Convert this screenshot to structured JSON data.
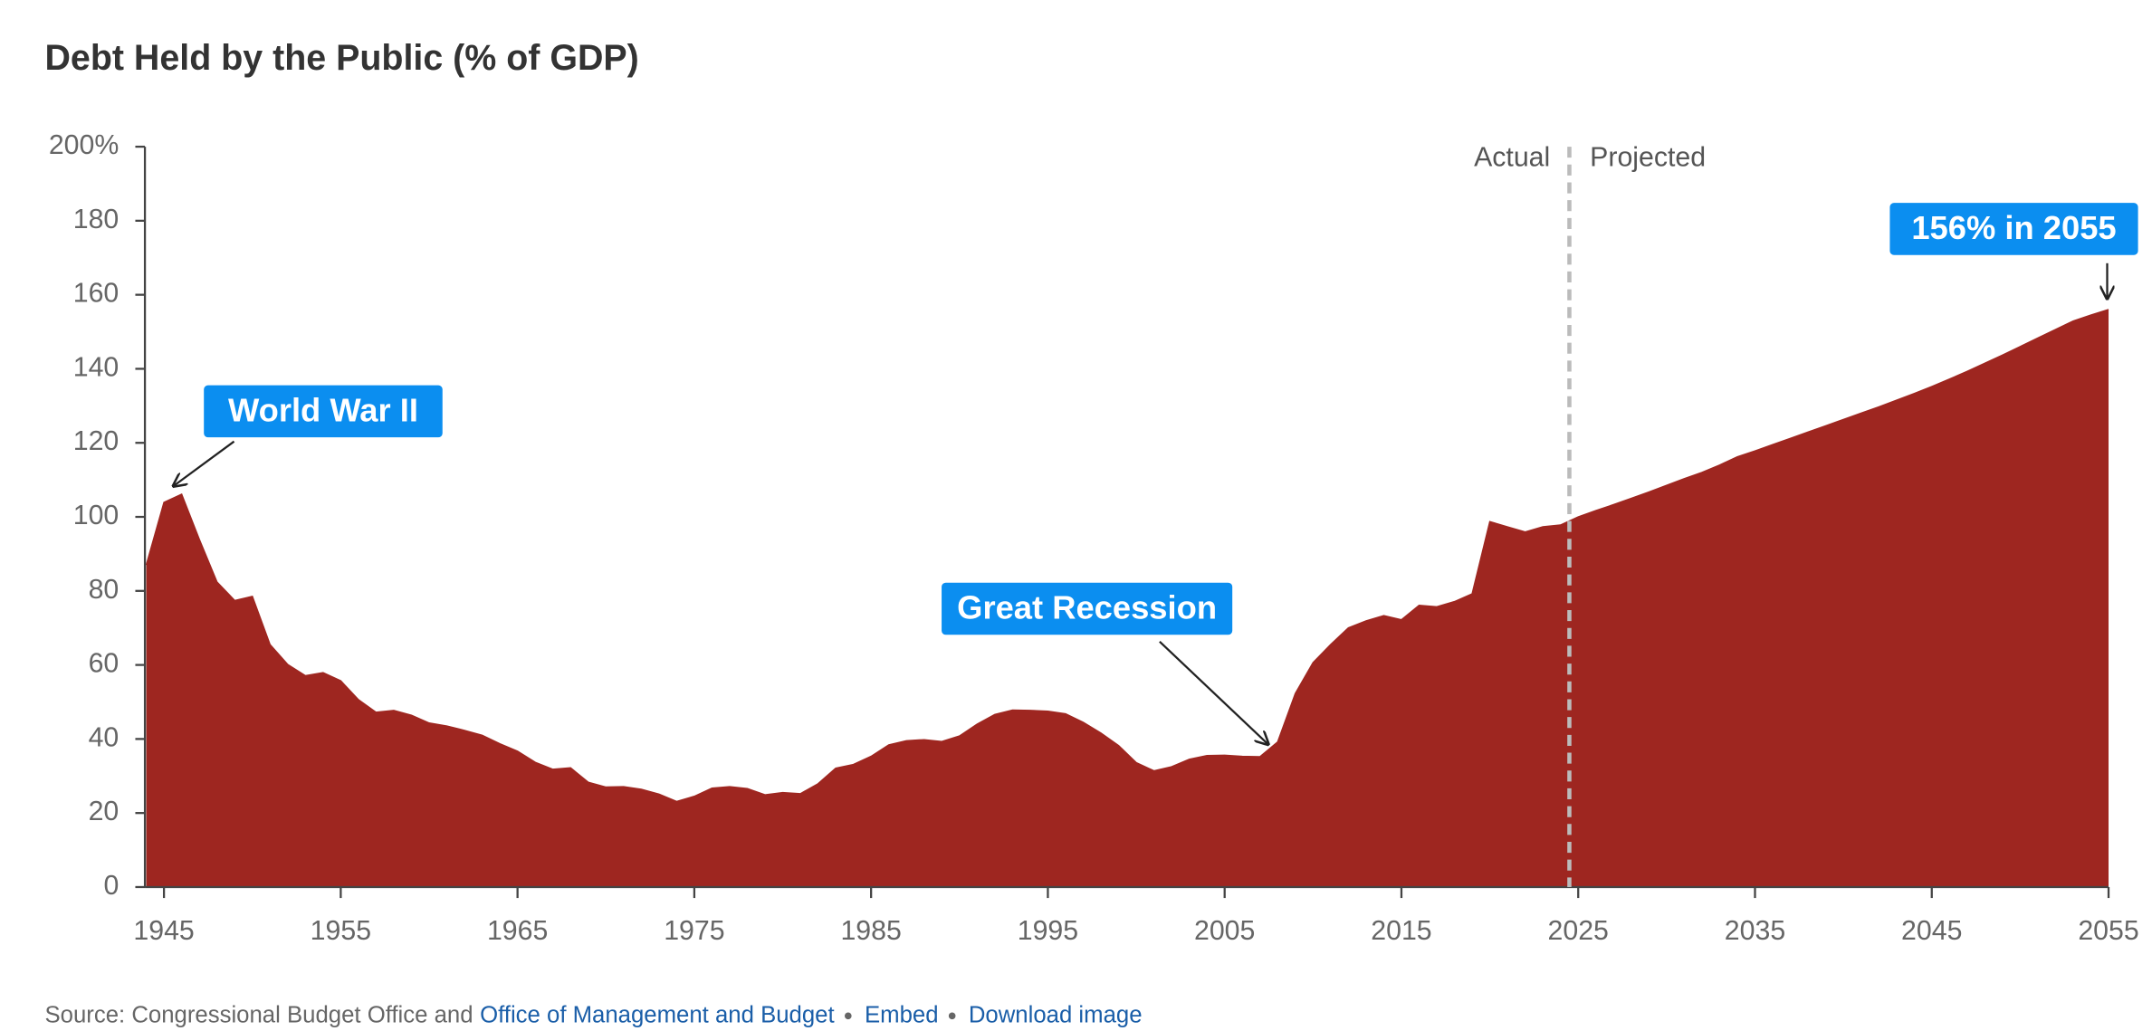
{
  "chart_data": {
    "type": "area",
    "title": "Debt Held by the Public (% of GDP)",
    "x": [
      1944,
      1945,
      1946,
      1947,
      1948,
      1949,
      1950,
      1951,
      1952,
      1953,
      1954,
      1955,
      1956,
      1957,
      1958,
      1959,
      1960,
      1961,
      1962,
      1963,
      1964,
      1965,
      1966,
      1967,
      1968,
      1969,
      1970,
      1971,
      1972,
      1973,
      1974,
      1975,
      1976,
      1977,
      1978,
      1979,
      1980,
      1981,
      1982,
      1983,
      1984,
      1985,
      1986,
      1987,
      1988,
      1989,
      1990,
      1991,
      1992,
      1993,
      1994,
      1995,
      1996,
      1997,
      1998,
      1999,
      2000,
      2001,
      2002,
      2003,
      2004,
      2005,
      2006,
      2007,
      2008,
      2009,
      2010,
      2011,
      2012,
      2013,
      2014,
      2015,
      2016,
      2017,
      2018,
      2019,
      2020,
      2021,
      2022,
      2023,
      2024,
      2025,
      2026,
      2027,
      2028,
      2029,
      2030,
      2031,
      2032,
      2033,
      2034,
      2035,
      2036,
      2037,
      2038,
      2039,
      2040,
      2041,
      2042,
      2043,
      2044,
      2045,
      2046,
      2047,
      2048,
      2049,
      2050,
      2051,
      2052,
      2053,
      2054,
      2055
    ],
    "values": [
      87,
      103.9,
      106.1,
      93.9,
      82.4,
      77.4,
      78.5,
      65.5,
      60.1,
      57.1,
      57.9,
      55.7,
      50.6,
      47.2,
      47.7,
      46.4,
      44.3,
      43.5,
      42.3,
      41.0,
      38.7,
      36.7,
      33.7,
      31.8,
      32.2,
      28.3,
      27.0,
      27.1,
      26.4,
      25.1,
      23.1,
      24.5,
      26.7,
      27.1,
      26.6,
      24.9,
      25.5,
      25.2,
      27.9,
      32.1,
      33.1,
      35.3,
      38.4,
      39.5,
      39.8,
      39.3,
      40.8,
      44.0,
      46.6,
      47.8,
      47.7,
      47.5,
      46.8,
      44.5,
      41.6,
      38.2,
      33.6,
      31.4,
      32.5,
      34.5,
      35.5,
      35.6,
      35.3,
      35.2,
      39.2,
      52.3,
      60.6,
      65.5,
      70.0,
      71.9,
      73.3,
      72.2,
      76.1,
      75.7,
      77.1,
      79.2,
      98.7,
      97.3,
      95.9,
      97.3,
      97.8,
      100,
      101.7,
      103.3,
      105,
      106.7,
      108.5,
      110.3,
      112,
      114,
      116.2,
      117.8,
      119.5,
      121.2,
      122.9,
      124.6,
      126.3,
      128,
      129.7,
      131.5,
      133.3,
      135.2,
      137.2,
      139.3,
      141.5,
      143.7,
      146,
      148.3,
      150.6,
      152.9,
      154.5,
      156
    ],
    "color": "#9e2620",
    "xlim": [
      1944,
      2055
    ],
    "xticks": [
      1945,
      1955,
      1965,
      1975,
      1985,
      1995,
      2005,
      2015,
      2025,
      2035,
      2045,
      2055
    ],
    "ylim": [
      0,
      200
    ],
    "yticks": [
      0,
      20,
      40,
      60,
      80,
      100,
      120,
      140,
      160,
      180,
      {
        "value": 200,
        "label": "200%"
      }
    ],
    "divider": {
      "x": 2024.5,
      "left_label": "Actual",
      "right_label": "Projected"
    },
    "annotations": [
      {
        "text": "World War II",
        "x": 1946,
        "y": 106.1
      },
      {
        "text": "Great Recession",
        "x": 2007,
        "y": 35.2
      },
      {
        "text": "156% in 2055",
        "x": 2055,
        "y": 156
      }
    ],
    "annotation_color": "#0b8ef0",
    "source": {
      "prefix": "Source: Congressional Budget Office and",
      "links": [
        "Office of Management and Budget",
        "Embed",
        "Download image"
      ]
    }
  }
}
